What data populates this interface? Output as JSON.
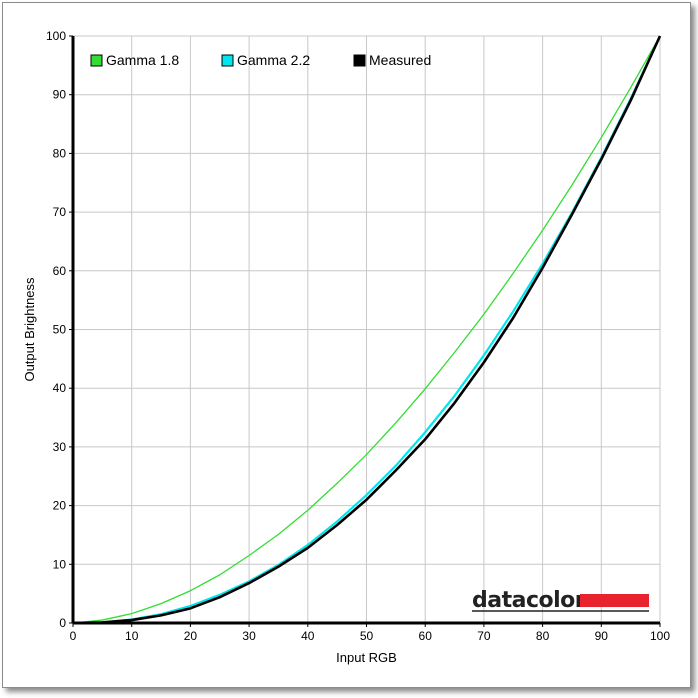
{
  "chart_data": {
    "type": "line",
    "xlabel": "Input RGB",
    "ylabel": "Output Brightness",
    "xlim": [
      0,
      100
    ],
    "ylim": [
      0,
      100
    ],
    "xticks": [
      0,
      10,
      20,
      30,
      40,
      50,
      60,
      70,
      80,
      90,
      100
    ],
    "yticks": [
      0,
      10,
      20,
      30,
      40,
      50,
      60,
      70,
      80,
      90,
      100
    ],
    "grid": true,
    "legend_position": "top-left",
    "x": [
      0,
      5,
      10,
      15,
      20,
      25,
      30,
      35,
      40,
      45,
      50,
      55,
      60,
      65,
      70,
      75,
      80,
      85,
      90,
      95,
      100
    ],
    "series": [
      {
        "name": "Gamma 1.8",
        "color": "#33dd33",
        "values": [
          0,
          0.5,
          1.6,
          3.3,
          5.5,
          8.2,
          11.5,
          15.1,
          19.2,
          23.8,
          28.7,
          34.1,
          39.9,
          46.1,
          52.6,
          59.6,
          66.9,
          74.6,
          82.7,
          91.2,
          100
        ]
      },
      {
        "name": "Gamma 2.2",
        "color": "#00e5ee",
        "values": [
          0,
          0.1,
          0.6,
          1.5,
          2.9,
          4.8,
          7.1,
          9.9,
          13.3,
          17.3,
          21.8,
          26.8,
          32.5,
          38.7,
          45.6,
          53.1,
          61.2,
          69.9,
          79.3,
          89.3,
          100
        ]
      },
      {
        "name": "Measured",
        "color": "#000000",
        "values": [
          0,
          0.1,
          0.5,
          1.3,
          2.5,
          4.4,
          6.8,
          9.6,
          12.8,
          16.7,
          21.0,
          26.0,
          31.3,
          37.5,
          44.4,
          52.0,
          60.5,
          69.6,
          79.0,
          89.0,
          100
        ]
      }
    ]
  },
  "brand": {
    "name": "datacolor",
    "bar_color": "#e8232d"
  }
}
